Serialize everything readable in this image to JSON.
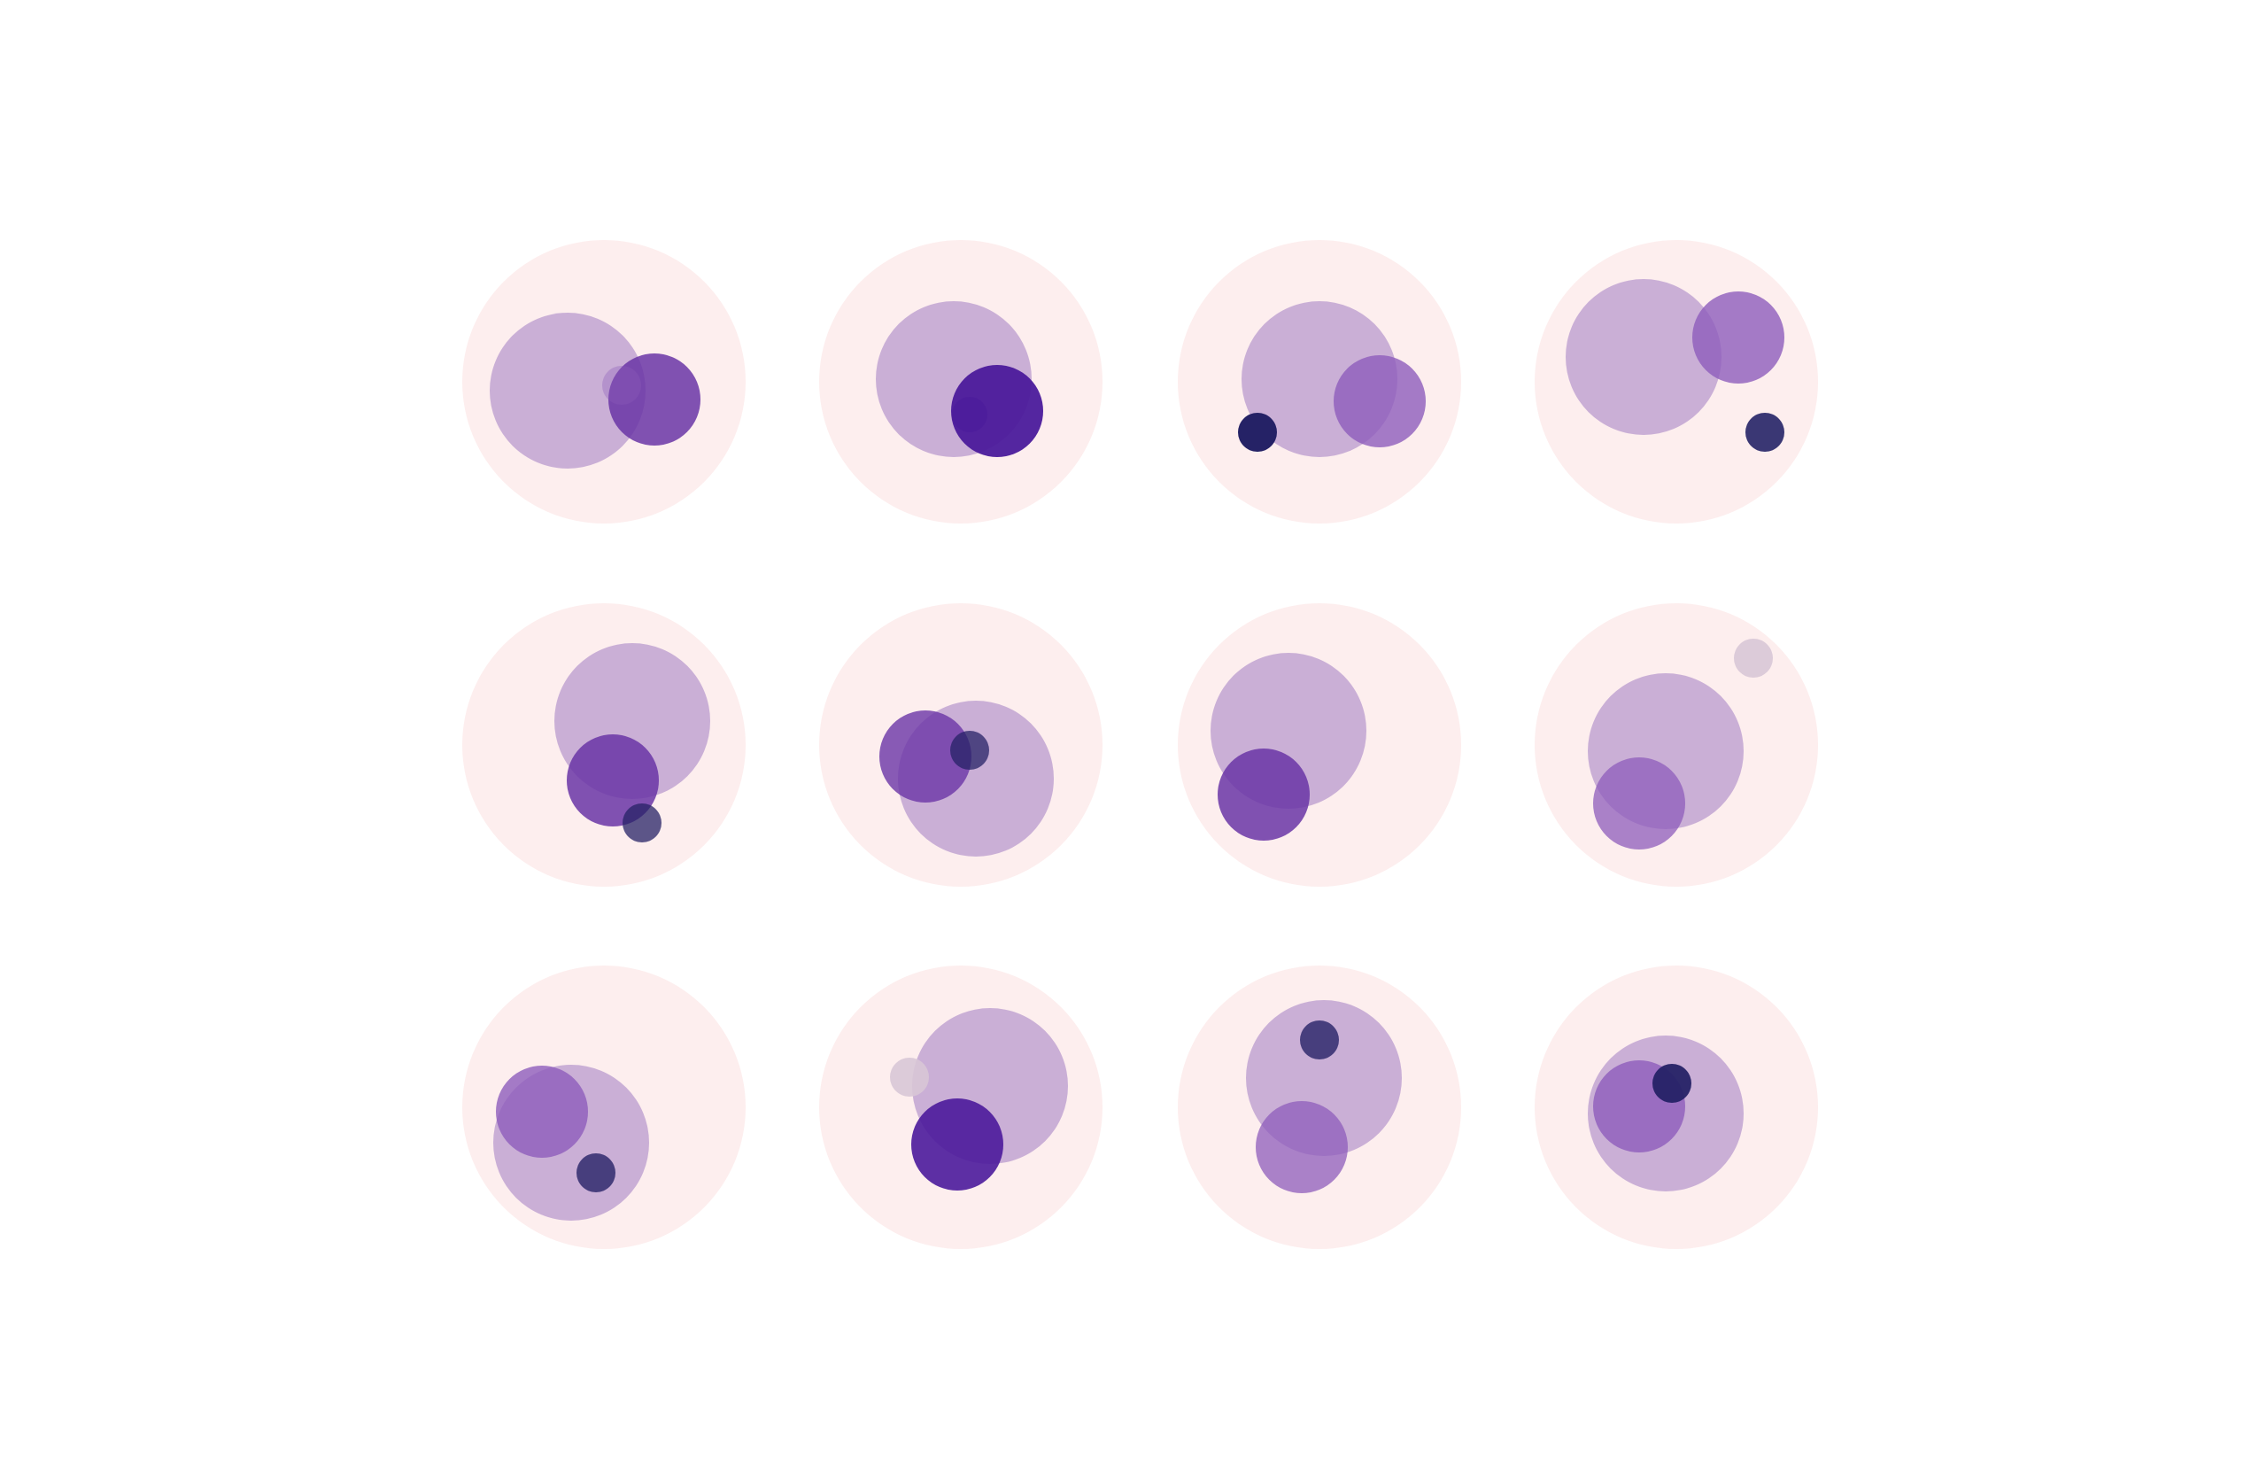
{
  "colors": {
    "background": "#ffffff",
    "cell": "#fdeeee",
    "lavender": "#caafd6",
    "purple_light": "#8d5cbb",
    "purple_medium": "#6a35a6",
    "purple_dark": "#4b1a9b",
    "navy": "#252266",
    "faint": "#d8c7d6"
  },
  "grid": {
    "rows": 3,
    "columns": 4,
    "cell_count": 12
  },
  "cells": [
    {
      "row": 1,
      "col": 1,
      "blob_colors": [
        "lavender",
        "purple_medium",
        "purple_light"
      ]
    },
    {
      "row": 1,
      "col": 2,
      "blob_colors": [
        "lavender",
        "purple_dark",
        "purple_dark"
      ]
    },
    {
      "row": 1,
      "col": 3,
      "blob_colors": [
        "lavender",
        "purple_light",
        "navy"
      ]
    },
    {
      "row": 1,
      "col": 4,
      "blob_colors": [
        "lavender",
        "purple_light",
        "navy"
      ]
    },
    {
      "row": 2,
      "col": 1,
      "blob_colors": [
        "lavender",
        "purple_medium",
        "navy"
      ]
    },
    {
      "row": 2,
      "col": 2,
      "blob_colors": [
        "lavender",
        "purple_medium",
        "navy"
      ]
    },
    {
      "row": 2,
      "col": 3,
      "blob_colors": [
        "lavender",
        "purple_medium"
      ]
    },
    {
      "row": 2,
      "col": 4,
      "blob_colors": [
        "lavender",
        "purple_light",
        "faint"
      ]
    },
    {
      "row": 3,
      "col": 1,
      "blob_colors": [
        "lavender",
        "purple_light",
        "navy"
      ]
    },
    {
      "row": 3,
      "col": 2,
      "blob_colors": [
        "lavender",
        "purple_dark",
        "faint"
      ]
    },
    {
      "row": 3,
      "col": 3,
      "blob_colors": [
        "lavender",
        "purple_light",
        "navy"
      ]
    },
    {
      "row": 3,
      "col": 4,
      "blob_colors": [
        "lavender",
        "purple_light",
        "navy"
      ]
    }
  ]
}
